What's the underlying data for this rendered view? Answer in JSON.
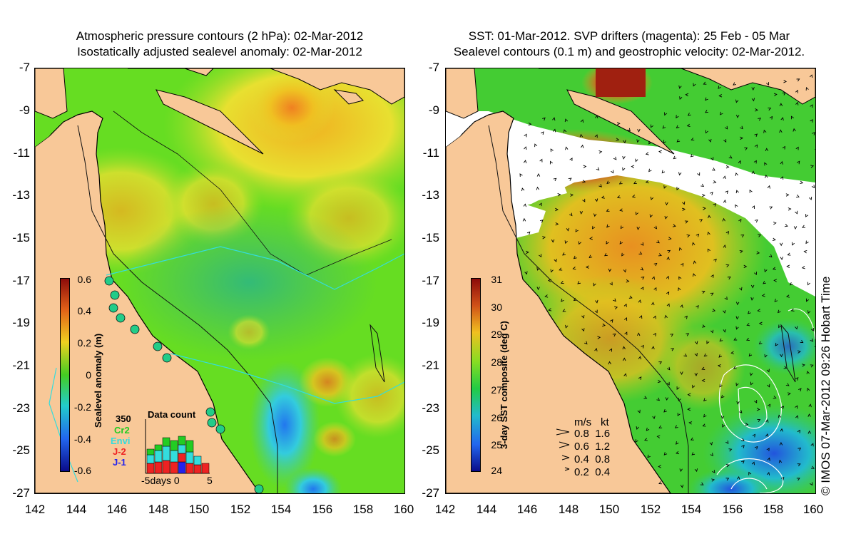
{
  "left_panel": {
    "title_line1": "Atmospheric pressure contours (2 hPa): 02-Mar-2012",
    "title_line2": "Isostatically adjusted sealevel anomaly: 02-Mar-2012",
    "colorbar": {
      "label": "Sealevel anomaly (m)",
      "ticks": [
        "0.6",
        "0.4",
        "0.2",
        "0",
        "-0.2",
        "-0.4",
        "-0.6"
      ]
    },
    "data_count": {
      "title": "Data count",
      "max_label": "350",
      "satellites": [
        {
          "name": "Cr2",
          "color": "#22cc22"
        },
        {
          "name": "Envi",
          "color": "#33dddd"
        },
        {
          "name": "J-2",
          "color": "#ee2222"
        },
        {
          "name": "J-1",
          "color": "#2222ee"
        }
      ],
      "x_axis_label": "-5days 0",
      "x_axis_end": "5"
    }
  },
  "right_panel": {
    "title_line1": "SST: 01-Mar-2012. SVP drifters (magenta): 25 Feb - 05 Mar",
    "title_line2": "Sealevel contours (0.1 m) and geostrophic velocity: 02-Mar-2012.",
    "colorbar": {
      "label": "3-day SST composite (deg C)",
      "ticks": [
        "31",
        "30",
        "29",
        "28",
        "27",
        "26",
        "25",
        "24"
      ]
    },
    "velocity_legend": {
      "header_ms": "m/s",
      "header_kt": "kt",
      "rows": [
        {
          "ms": "0.8",
          "kt": "1.6"
        },
        {
          "ms": "0.6",
          "kt": "1.2"
        },
        {
          "ms": "0.4",
          "kt": "0.8"
        },
        {
          "ms": "0.2",
          "kt": "0.4"
        }
      ]
    },
    "copyright": "© IMOS 07-Mar-2012 09:26 Hobart Time"
  },
  "axes": {
    "latitudes": [
      "-7",
      "-9",
      "-11",
      "-13",
      "-15",
      "-17",
      "-19",
      "-21",
      "-23",
      "-25",
      "-27"
    ],
    "longitudes": [
      "142",
      "144",
      "146",
      "148",
      "150",
      "152",
      "154",
      "156",
      "158",
      "160"
    ]
  },
  "colors": {
    "land": "#f8c898",
    "sla_bg": "#66dd22",
    "sst_bg": "#33cc33"
  }
}
